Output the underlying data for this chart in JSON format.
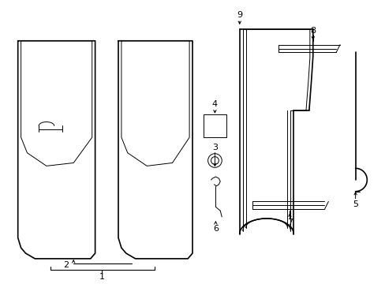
{
  "background_color": "#ffffff",
  "line_color": "#000000",
  "font_size": 8,
  "lw_main": 1.2,
  "lw_thin": 0.7
}
